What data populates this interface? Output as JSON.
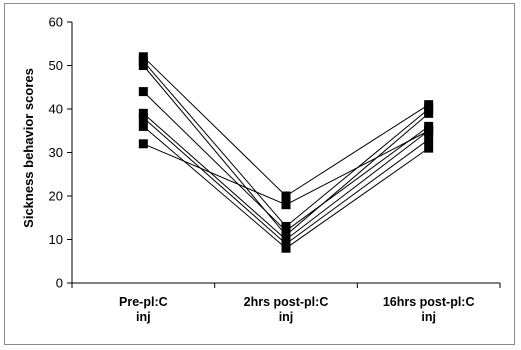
{
  "chart_data": {
    "type": "line",
    "categories": [
      [
        "Pre-pl:C",
        "inj"
      ],
      [
        "2hrs post-pl:C",
        "inj"
      ],
      [
        "16hrs post-pl:C",
        "inj"
      ]
    ],
    "ylabel": "Sickness behavior scores",
    "ylim": [
      0,
      60
    ],
    "yticks": [
      0,
      10,
      20,
      30,
      40,
      50,
      60
    ],
    "grid": false,
    "legend": "none",
    "marker": "square",
    "line_color": "#000000",
    "series": [
      {
        "values": [
          52,
          20,
          41
        ]
      },
      {
        "values": [
          51,
          13,
          40
        ]
      },
      {
        "values": [
          50,
          11,
          39
        ]
      },
      {
        "values": [
          44,
          12,
          36
        ]
      },
      {
        "values": [
          39,
          10,
          35
        ]
      },
      {
        "values": [
          38,
          9,
          33
        ]
      },
      {
        "values": [
          36,
          8,
          31
        ]
      },
      {
        "values": [
          32,
          18,
          35
        ]
      }
    ]
  }
}
